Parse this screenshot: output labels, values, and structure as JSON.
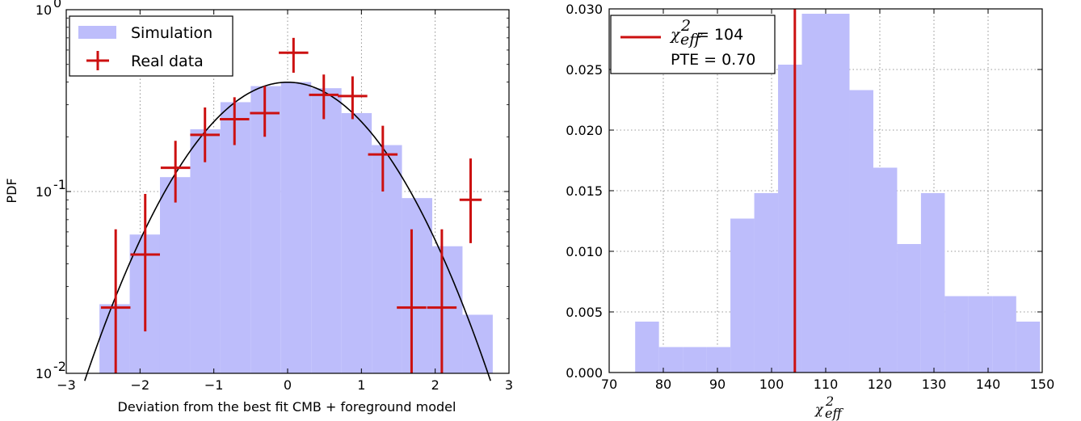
{
  "colors": {
    "histogram": "#bdbdfb",
    "data": "#cc1010",
    "model_curve": "#000000",
    "grid": "#777777"
  },
  "chart_data": [
    {
      "type": "bar",
      "subtype": "histogram-with-errorbars",
      "xlabel": "Deviation from the best fit CMB + foreground model",
      "ylabel": "PDF",
      "xlim": [
        -3,
        3
      ],
      "ylim": [
        0.01,
        1
      ],
      "yscale": "log",
      "grid": true,
      "legend_position": "top-left",
      "x_ticks": [
        {
          "value": -3,
          "label": "−3"
        },
        {
          "value": -2,
          "label": "−2"
        },
        {
          "value": -1,
          "label": "−1"
        },
        {
          "value": 0,
          "label": "0"
        },
        {
          "value": 1,
          "label": "1"
        },
        {
          "value": 2,
          "label": "2"
        },
        {
          "value": 3,
          "label": "3"
        }
      ],
      "y_ticks": [
        {
          "value": 0.01,
          "base": "10",
          "exp": "-2"
        },
        {
          "value": 0.1,
          "base": "10",
          "exp": "-1"
        },
        {
          "value": 1,
          "base": "10",
          "exp": "0"
        }
      ],
      "histogram": {
        "name": "Simulation",
        "bin_edges": [
          -2.55,
          -2.14,
          -1.73,
          -1.32,
          -0.91,
          -0.5,
          -0.09,
          0.32,
          0.73,
          1.14,
          1.55,
          1.96,
          2.37,
          2.78
        ],
        "values": [
          0.024,
          0.058,
          0.12,
          0.22,
          0.31,
          0.38,
          0.4,
          0.37,
          0.27,
          0.18,
          0.092,
          0.05,
          0.021
        ]
      },
      "data_points": {
        "name": "Real data",
        "points": [
          {
            "x": -2.33,
            "y": 0.023,
            "xerr": 0.2,
            "lo": 0.0095,
            "hi": 0.062
          },
          {
            "x": -1.93,
            "y": 0.045,
            "xerr": 0.2,
            "lo": 0.017,
            "hi": 0.097
          },
          {
            "x": -1.52,
            "y": 0.135,
            "xerr": 0.2,
            "lo": 0.087,
            "hi": 0.19
          },
          {
            "x": -1.12,
            "y": 0.205,
            "xerr": 0.2,
            "lo": 0.145,
            "hi": 0.29
          },
          {
            "x": -0.72,
            "y": 0.25,
            "xerr": 0.2,
            "lo": 0.18,
            "hi": 0.33
          },
          {
            "x": -0.31,
            "y": 0.27,
            "xerr": 0.2,
            "lo": 0.2,
            "hi": 0.38
          },
          {
            "x": 0.08,
            "y": 0.58,
            "xerr": 0.2,
            "lo": 0.45,
            "hi": 0.7
          },
          {
            "x": 0.49,
            "y": 0.34,
            "xerr": 0.2,
            "lo": 0.25,
            "hi": 0.44
          },
          {
            "x": 0.88,
            "y": 0.335,
            "xerr": 0.2,
            "lo": 0.25,
            "hi": 0.43
          },
          {
            "x": 1.29,
            "y": 0.16,
            "xerr": 0.2,
            "lo": 0.1,
            "hi": 0.23
          },
          {
            "x": 1.68,
            "y": 0.023,
            "xerr": 0.2,
            "lo": 0.0095,
            "hi": 0.062
          },
          {
            "x": 2.09,
            "y": 0.023,
            "xerr": 0.2,
            "lo": 0.0095,
            "hi": 0.062
          },
          {
            "x": 2.48,
            "y": 0.09,
            "xerr": 0.15,
            "lo": 0.052,
            "hi": 0.152
          }
        ]
      },
      "model_curve": {
        "kind": "standard normal pdf",
        "mean": 0,
        "sigma": 1,
        "x_range": [
          -2.75,
          2.75
        ]
      },
      "legend": [
        "Simulation",
        "Real data"
      ]
    },
    {
      "type": "bar",
      "subtype": "histogram",
      "xlabel_math": {
        "base": "χ",
        "sup": "2",
        "sub": "eff"
      },
      "xlim": [
        70,
        150
      ],
      "ylim": [
        0,
        0.03
      ],
      "grid": true,
      "legend_position": "top-left",
      "x_ticks": [
        "70",
        "80",
        "90",
        "100",
        "110",
        "120",
        "130",
        "140",
        "150"
      ],
      "x_tick_values": [
        70,
        80,
        90,
        100,
        110,
        120,
        130,
        140,
        150
      ],
      "y_ticks": [
        "0.000",
        "0.005",
        "0.010",
        "0.015",
        "0.020",
        "0.025",
        "0.030"
      ],
      "y_tick_values": [
        0,
        0.005,
        0.01,
        0.015,
        0.02,
        0.025,
        0.03
      ],
      "histogram": {
        "bin_edges": [
          74.8,
          79.2,
          83.6,
          88.0,
          92.4,
          96.8,
          101.2,
          105.6,
          110.0,
          114.4,
          118.8,
          123.2,
          127.6,
          132.0,
          136.4,
          140.8,
          145.2,
          149.6
        ],
        "values": [
          0.0042,
          0.0021,
          0.0021,
          0.0021,
          0.0127,
          0.0148,
          0.0254,
          0.0296,
          0.0296,
          0.0233,
          0.0169,
          0.0106,
          0.0148,
          0.0063,
          0.0063,
          0.0063,
          0.0042
        ]
      },
      "vline": {
        "x": 104.3
      },
      "legend": {
        "line1": {
          "base": "χ",
          "sup": "2",
          "sub": "eff",
          "rest": " = 104"
        },
        "line2": "PTE = 0.70"
      }
    }
  ]
}
